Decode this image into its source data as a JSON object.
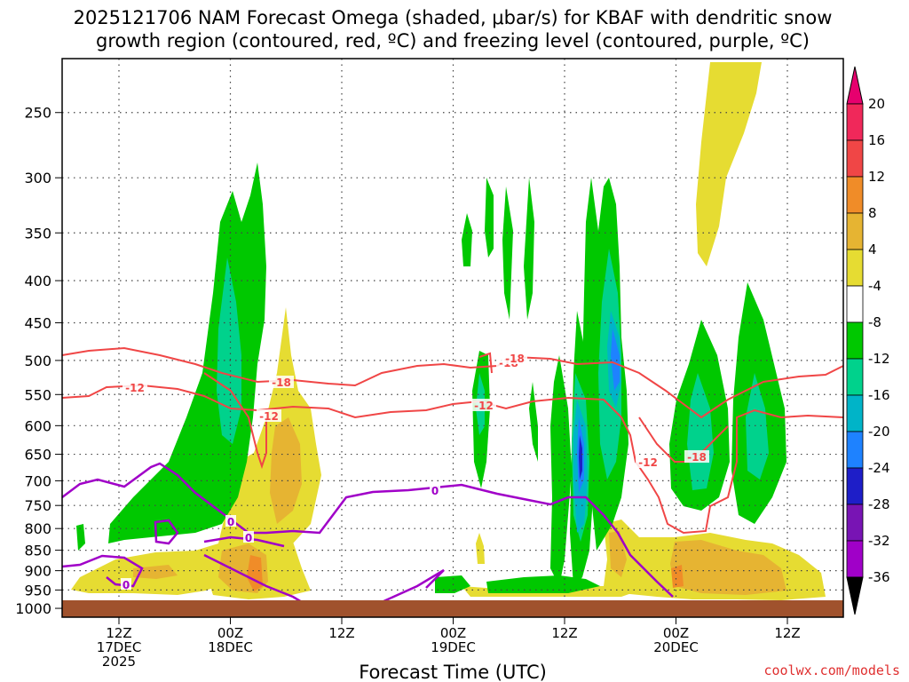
{
  "chart_data": {
    "type": "heatmap",
    "title_line1": "2025121706 NAM Forecast Omega (shaded, μbar/s) for KBAF with dendritic snow",
    "title_line2": "growth region (contoured, red, ºC) and freezing level (contoured, purple, ºC)",
    "xlabel": "Forecast Time (UTC)",
    "ylabel": "",
    "y_ticks": [
      "250",
      "300",
      "350",
      "400",
      "450",
      "500",
      "550",
      "600",
      "650",
      "700",
      "750",
      "800",
      "850",
      "900",
      "950",
      "1000"
    ],
    "x_ticks": [
      {
        "line1": "12Z",
        "line2": "17DEC",
        "line3": "2025"
      },
      {
        "line1": "00Z",
        "line2": "18DEC",
        "line3": ""
      },
      {
        "line1": "12Z",
        "line2": "",
        "line3": ""
      },
      {
        "line1": "00Z",
        "line2": "19DEC",
        "line3": ""
      },
      {
        "line1": "12Z",
        "line2": "",
        "line3": ""
      },
      {
        "line1": "00Z",
        "line2": "20DEC",
        "line3": ""
      },
      {
        "line1": "12Z",
        "line2": "",
        "line3": ""
      }
    ],
    "colorbar": {
      "labels": [
        "20",
        "16",
        "12",
        "8",
        "4",
        "-4",
        "-8",
        "-12",
        "-16",
        "-20",
        "-24",
        "-28",
        "-32",
        "-36"
      ],
      "colors": [
        "#f0285a",
        "#f04646",
        "#f08c28",
        "#e6b432",
        "#e6dc32",
        "#ffffff",
        "#00c800",
        "#00d28c",
        "#00b4c8",
        "#1e82ff",
        "#1e1ec8",
        "#7814b4",
        "#a000c8",
        "#a0a0a0"
      ],
      "top_color": "#e6006e",
      "bottom_color": "#000000"
    },
    "contour_labels": {
      "dgz": [
        "-12",
        "-18",
        "-12",
        "-18",
        "-12",
        "-18",
        "-12",
        "-18"
      ],
      "freezing": [
        "0",
        "0",
        "0",
        "0"
      ]
    },
    "colors": {
      "dgz_line": "#f04646",
      "freezing_line": "#a000c8",
      "terrain": "#a0522d",
      "grid": "#555555"
    }
  },
  "credit": "coolwx.com/models"
}
